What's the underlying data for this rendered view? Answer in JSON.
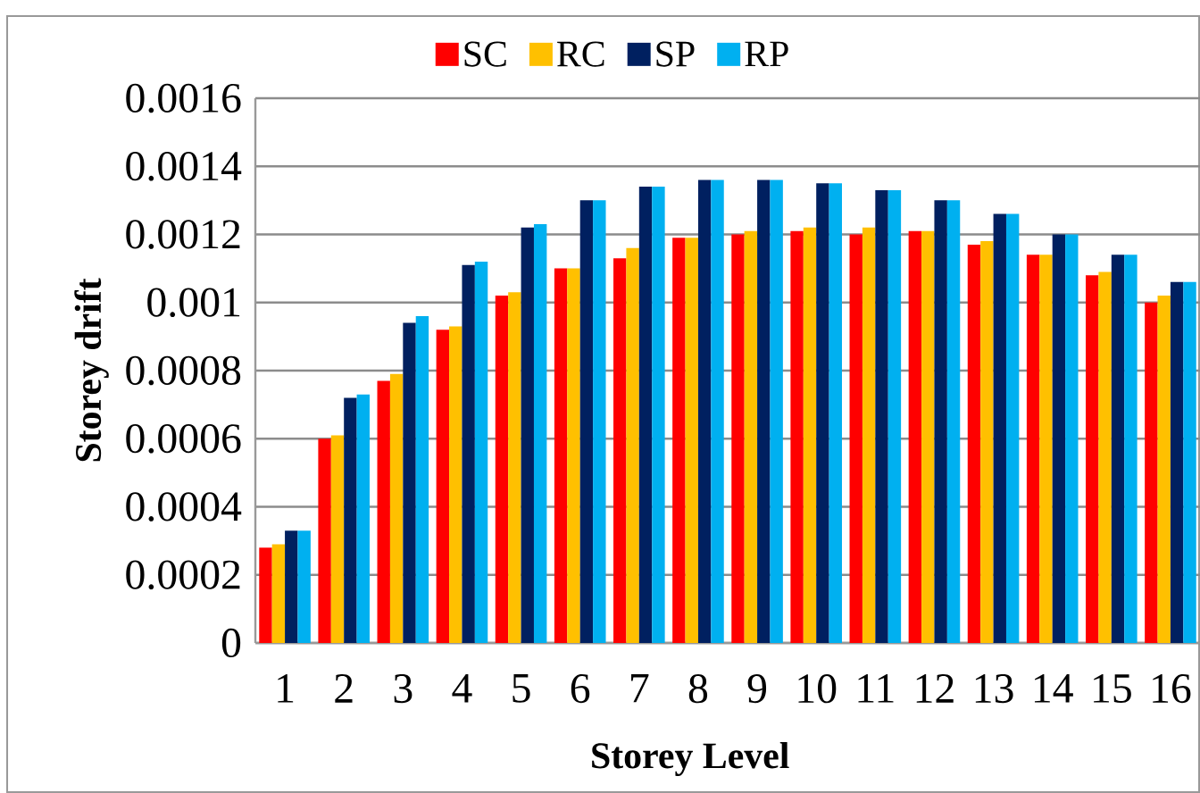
{
  "chart_data": {
    "type": "bar",
    "xlabel": "Storey Level",
    "ylabel": "Storey drift",
    "categories": [
      "1",
      "2",
      "3",
      "4",
      "5",
      "6",
      "7",
      "8",
      "9",
      "10",
      "11",
      "12",
      "13",
      "14",
      "15",
      "16"
    ],
    "series": [
      {
        "name": "SC",
        "color": "#ff0000",
        "values": [
          0.00028,
          0.0006,
          0.00077,
          0.00092,
          0.00102,
          0.0011,
          0.00113,
          0.00119,
          0.0012,
          0.00121,
          0.0012,
          0.00121,
          0.00117,
          0.00114,
          0.00108,
          0.001
        ]
      },
      {
        "name": "RC",
        "color": "#ffc000",
        "values": [
          0.00029,
          0.00061,
          0.00079,
          0.00093,
          0.00103,
          0.0011,
          0.00116,
          0.00119,
          0.00121,
          0.00122,
          0.00122,
          0.00121,
          0.00118,
          0.00114,
          0.00109,
          0.00102
        ]
      },
      {
        "name": "SP",
        "color": "#002060",
        "values": [
          0.00033,
          0.00072,
          0.00094,
          0.00111,
          0.00122,
          0.0013,
          0.00134,
          0.00136,
          0.00136,
          0.00135,
          0.00133,
          0.0013,
          0.00126,
          0.0012,
          0.00114,
          0.00106
        ]
      },
      {
        "name": "RP",
        "color": "#00b0f0",
        "values": [
          0.00033,
          0.00073,
          0.00096,
          0.00112,
          0.00123,
          0.0013,
          0.00134,
          0.00136,
          0.00136,
          0.00135,
          0.00133,
          0.0013,
          0.00126,
          0.0012,
          0.00114,
          0.00106
        ]
      }
    ],
    "ylim": [
      0,
      0.0016
    ],
    "yticks": [
      {
        "value": 0,
        "label": "0"
      },
      {
        "value": 0.0002,
        "label": "0.0002"
      },
      {
        "value": 0.0004,
        "label": "0.0004"
      },
      {
        "value": 0.0006,
        "label": "0.0006"
      },
      {
        "value": 0.0008,
        "label": "0.0008"
      },
      {
        "value": 0.001,
        "label": "0.001"
      },
      {
        "value": 0.0012,
        "label": "0.0012"
      },
      {
        "value": 0.0014,
        "label": "0.0014"
      },
      {
        "value": 0.0016,
        "label": "0.0016"
      }
    ],
    "grid": "y",
    "legend": "top"
  }
}
